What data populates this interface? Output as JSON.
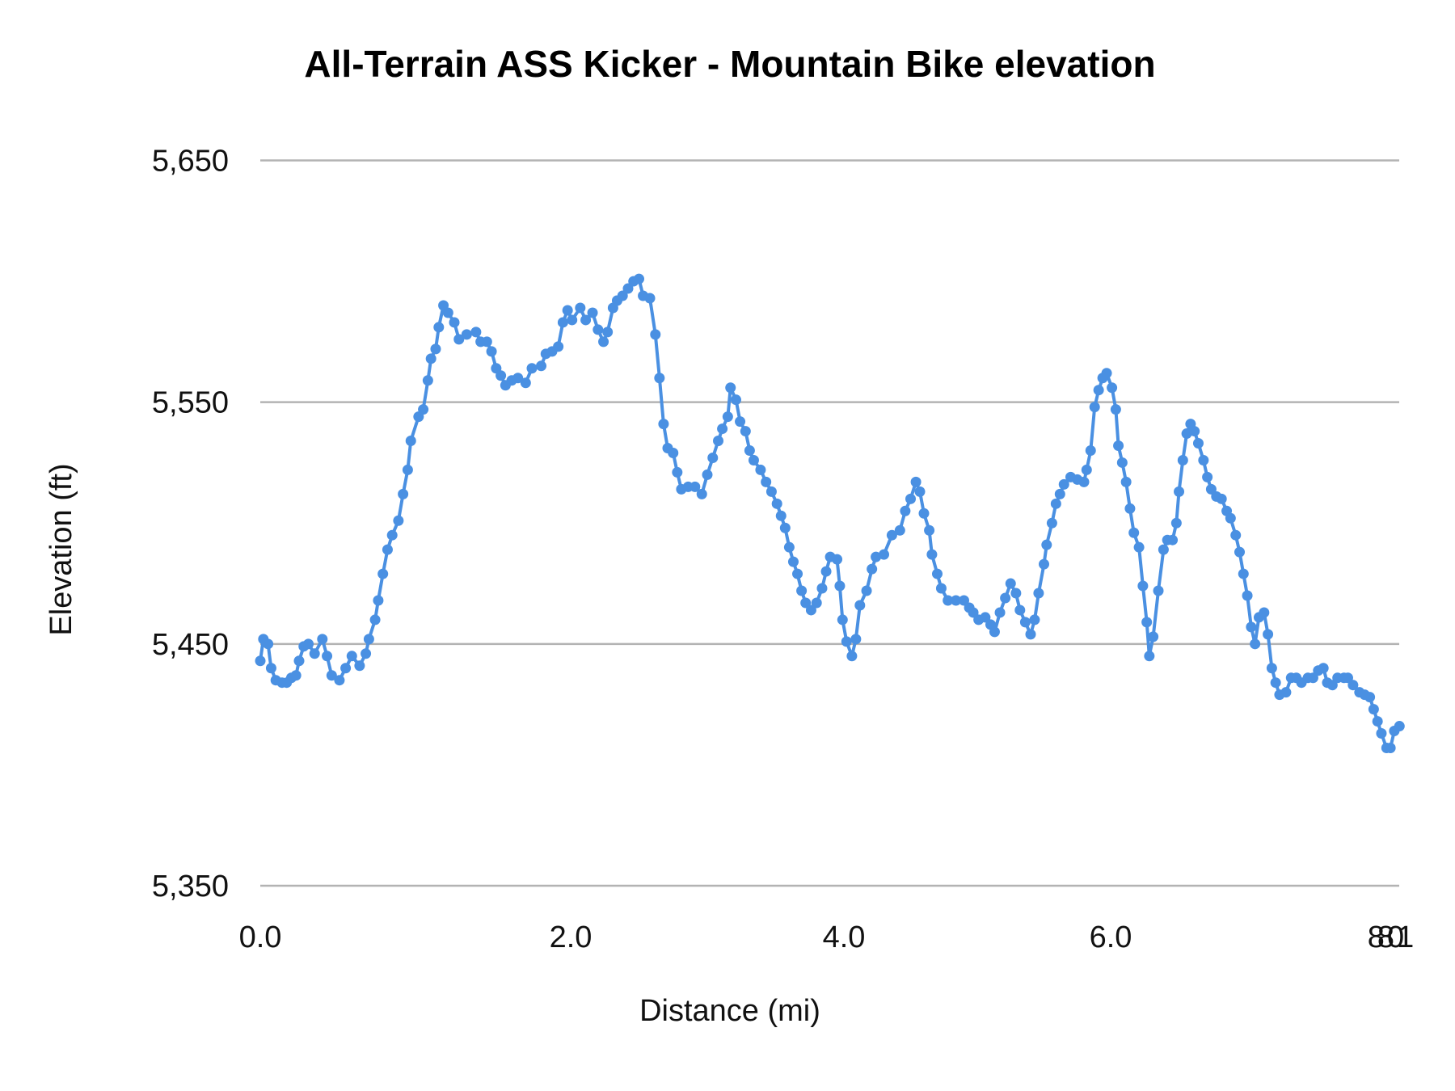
{
  "chart_data": {
    "type": "line",
    "title": "All-Terrain ASS Kicker - Mountain Bike elevation",
    "xlabel": "Distance (mi)",
    "ylabel": "Elevation (ft)",
    "ylim": [
      5350,
      5650
    ],
    "yticks": [
      5350,
      5450,
      5550,
      5650
    ],
    "ytick_labels": [
      "5,350",
      "5,450",
      "5,550",
      "5,650"
    ],
    "xticks": [
      0,
      2,
      4,
      6
    ],
    "xtick_labels": [
      "0.0",
      "2.0",
      "4.0",
      "6.0"
    ],
    "x_end_label": "8801",
    "grid": true,
    "legend": "none",
    "markers": true,
    "color": "#4a90e2",
    "points": [
      [
        0,
        5443
      ],
      [
        0.02,
        5452
      ],
      [
        0.05,
        5450
      ],
      [
        0.07,
        5440
      ],
      [
        0.1,
        5435
      ],
      [
        0.14,
        5434
      ],
      [
        0.17,
        5434
      ],
      [
        0.2,
        5436
      ],
      [
        0.23,
        5437
      ],
      [
        0.25,
        5443
      ],
      [
        0.28,
        5449
      ],
      [
        0.31,
        5450
      ],
      [
        0.35,
        5446
      ],
      [
        0.4,
        5452
      ],
      [
        0.43,
        5445
      ],
      [
        0.46,
        5437
      ],
      [
        0.51,
        5435
      ],
      [
        0.55,
        5440
      ],
      [
        0.59,
        5445
      ],
      [
        0.64,
        5441
      ],
      [
        0.68,
        5446
      ],
      [
        0.7,
        5452
      ],
      [
        0.74,
        5460
      ],
      [
        0.76,
        5468
      ],
      [
        0.79,
        5479
      ],
      [
        0.82,
        5489
      ],
      [
        0.85,
        5495
      ],
      [
        0.89,
        5501
      ],
      [
        0.92,
        5512
      ],
      [
        0.95,
        5522
      ],
      [
        0.97,
        5534
      ],
      [
        1.02,
        5544
      ],
      [
        1.05,
        5547
      ],
      [
        1.08,
        5559
      ],
      [
        1.1,
        5568
      ],
      [
        1.13,
        5572
      ],
      [
        1.15,
        5581
      ],
      [
        1.18,
        5590
      ],
      [
        1.21,
        5587
      ],
      [
        1.25,
        5583
      ],
      [
        1.28,
        5576
      ],
      [
        1.33,
        5578
      ],
      [
        1.39,
        5579
      ],
      [
        1.42,
        5575
      ],
      [
        1.46,
        5575
      ],
      [
        1.49,
        5571
      ],
      [
        1.52,
        5564
      ],
      [
        1.55,
        5561
      ],
      [
        1.58,
        5557
      ],
      [
        1.62,
        5559
      ],
      [
        1.66,
        5560
      ],
      [
        1.71,
        5558
      ],
      [
        1.75,
        5564
      ],
      [
        1.81,
        5565
      ],
      [
        1.84,
        5570
      ],
      [
        1.88,
        5571
      ],
      [
        1.92,
        5573
      ],
      [
        1.95,
        5583
      ],
      [
        1.98,
        5588
      ],
      [
        2.01,
        5584
      ],
      [
        2.07,
        5589
      ],
      [
        2.11,
        5584
      ],
      [
        2.16,
        5587
      ],
      [
        2.2,
        5580
      ],
      [
        2.24,
        5575
      ],
      [
        2.27,
        5579
      ],
      [
        2.31,
        5589
      ],
      [
        2.34,
        5592
      ],
      [
        2.38,
        5594
      ],
      [
        2.42,
        5597
      ],
      [
        2.46,
        5600
      ],
      [
        2.5,
        5601
      ],
      [
        2.53,
        5594
      ],
      [
        2.58,
        5593
      ],
      [
        2.62,
        5578
      ],
      [
        2.65,
        5560
      ],
      [
        2.68,
        5541
      ],
      [
        2.71,
        5531
      ],
      [
        2.75,
        5529
      ],
      [
        2.78,
        5521
      ],
      [
        2.81,
        5514
      ],
      [
        2.86,
        5515
      ],
      [
        2.91,
        5515
      ],
      [
        2.96,
        5512
      ],
      [
        3.0,
        5520
      ],
      [
        3.04,
        5527
      ],
      [
        3.08,
        5534
      ],
      [
        3.11,
        5539
      ],
      [
        3.15,
        5544
      ],
      [
        3.17,
        5556
      ],
      [
        3.21,
        5551
      ],
      [
        3.24,
        5542
      ],
      [
        3.28,
        5538
      ],
      [
        3.31,
        5530
      ],
      [
        3.34,
        5526
      ],
      [
        3.39,
        5522
      ],
      [
        3.43,
        5517
      ],
      [
        3.47,
        5513
      ],
      [
        3.51,
        5508
      ],
      [
        3.54,
        5503
      ],
      [
        3.57,
        5498
      ],
      [
        3.6,
        5490
      ],
      [
        3.63,
        5484
      ],
      [
        3.66,
        5479
      ],
      [
        3.69,
        5472
      ],
      [
        3.72,
        5467
      ],
      [
        3.76,
        5464
      ],
      [
        3.8,
        5467
      ],
      [
        3.84,
        5473
      ],
      [
        3.87,
        5480
      ],
      [
        3.9,
        5486
      ],
      [
        3.95,
        5485
      ],
      [
        3.97,
        5474
      ],
      [
        3.99,
        5460
      ],
      [
        4.02,
        5451
      ],
      [
        4.06,
        5445
      ],
      [
        4.09,
        5452
      ],
      [
        4.12,
        5466
      ],
      [
        4.17,
        5472
      ],
      [
        4.21,
        5481
      ],
      [
        4.24,
        5486
      ],
      [
        4.3,
        5487
      ],
      [
        4.36,
        5495
      ],
      [
        4.42,
        5497
      ],
      [
        4.46,
        5505
      ],
      [
        4.5,
        5510
      ],
      [
        4.54,
        5517
      ],
      [
        4.57,
        5513
      ],
      [
        4.6,
        5504
      ],
      [
        4.64,
        5497
      ],
      [
        4.66,
        5487
      ],
      [
        4.7,
        5479
      ],
      [
        4.73,
        5473
      ],
      [
        4.78,
        5468
      ],
      [
        4.84,
        5468
      ],
      [
        4.9,
        5468
      ],
      [
        4.94,
        5465
      ],
      [
        4.97,
        5463
      ],
      [
        5.01,
        5460
      ],
      [
        5.06,
        5461
      ],
      [
        5.1,
        5458
      ],
      [
        5.13,
        5455
      ],
      [
        5.17,
        5463
      ],
      [
        5.21,
        5469
      ],
      [
        5.25,
        5475
      ],
      [
        5.29,
        5471
      ],
      [
        5.32,
        5464
      ],
      [
        5.36,
        5459
      ],
      [
        5.4,
        5454
      ],
      [
        5.43,
        5460
      ],
      [
        5.46,
        5471
      ],
      [
        5.5,
        5483
      ],
      [
        5.52,
        5491
      ],
      [
        5.56,
        5500
      ],
      [
        5.59,
        5508
      ],
      [
        5.62,
        5512
      ],
      [
        5.65,
        5516
      ],
      [
        5.7,
        5519
      ],
      [
        5.75,
        5518
      ],
      [
        5.8,
        5517
      ],
      [
        5.82,
        5522
      ],
      [
        5.85,
        5530
      ],
      [
        5.88,
        5548
      ],
      [
        5.91,
        5555
      ],
      [
        5.94,
        5560
      ],
      [
        5.97,
        5562
      ],
      [
        6.01,
        5556
      ],
      [
        6.04,
        5547
      ],
      [
        6.06,
        5532
      ],
      [
        6.09,
        5525
      ],
      [
        6.12,
        5517
      ],
      [
        6.15,
        5506
      ],
      [
        6.18,
        5496
      ],
      [
        6.22,
        5490
      ],
      [
        6.25,
        5474
      ],
      [
        6.28,
        5459
      ],
      [
        6.3,
        5445
      ],
      [
        6.33,
        5453
      ],
      [
        6.37,
        5472
      ],
      [
        6.41,
        5489
      ],
      [
        6.44,
        5493
      ],
      [
        6.48,
        5493
      ],
      [
        6.51,
        5500
      ],
      [
        6.53,
        5513
      ],
      [
        6.56,
        5526
      ],
      [
        6.59,
        5537
      ],
      [
        6.62,
        5541
      ],
      [
        6.65,
        5538
      ],
      [
        6.68,
        5533
      ],
      [
        6.72,
        5526
      ],
      [
        6.75,
        5519
      ],
      [
        6.78,
        5514
      ],
      [
        6.82,
        5511
      ],
      [
        6.86,
        5510
      ],
      [
        6.9,
        5505
      ],
      [
        6.93,
        5502
      ],
      [
        6.97,
        5495
      ],
      [
        7.0,
        5488
      ],
      [
        7.03,
        5479
      ],
      [
        7.06,
        5470
      ],
      [
        7.09,
        5457
      ],
      [
        7.12,
        5450
      ],
      [
        7.15,
        5461
      ],
      [
        7.19,
        5463
      ],
      [
        7.22,
        5454
      ],
      [
        7.25,
        5440
      ],
      [
        7.28,
        5434
      ],
      [
        7.31,
        5429
      ],
      [
        7.36,
        5430
      ],
      [
        7.4,
        5436
      ],
      [
        7.44,
        5436
      ],
      [
        7.48,
        5434
      ],
      [
        7.53,
        5436
      ],
      [
        7.57,
        5436
      ],
      [
        7.61,
        5439
      ],
      [
        7.65,
        5440
      ],
      [
        7.68,
        5434
      ],
      [
        7.72,
        5433
      ],
      [
        7.76,
        5436
      ],
      [
        7.81,
        5436
      ],
      [
        7.84,
        5436
      ],
      [
        7.88,
        5433
      ],
      [
        7.93,
        5430
      ],
      [
        7.97,
        5429
      ],
      [
        8.01,
        5428
      ],
      [
        8.04,
        5423
      ],
      [
        8.07,
        5418
      ],
      [
        8.1,
        5413
      ],
      [
        8.14,
        5407
      ],
      [
        8.17,
        5407
      ],
      [
        8.2,
        5414
      ],
      [
        8.24,
        5416
      ]
    ]
  }
}
